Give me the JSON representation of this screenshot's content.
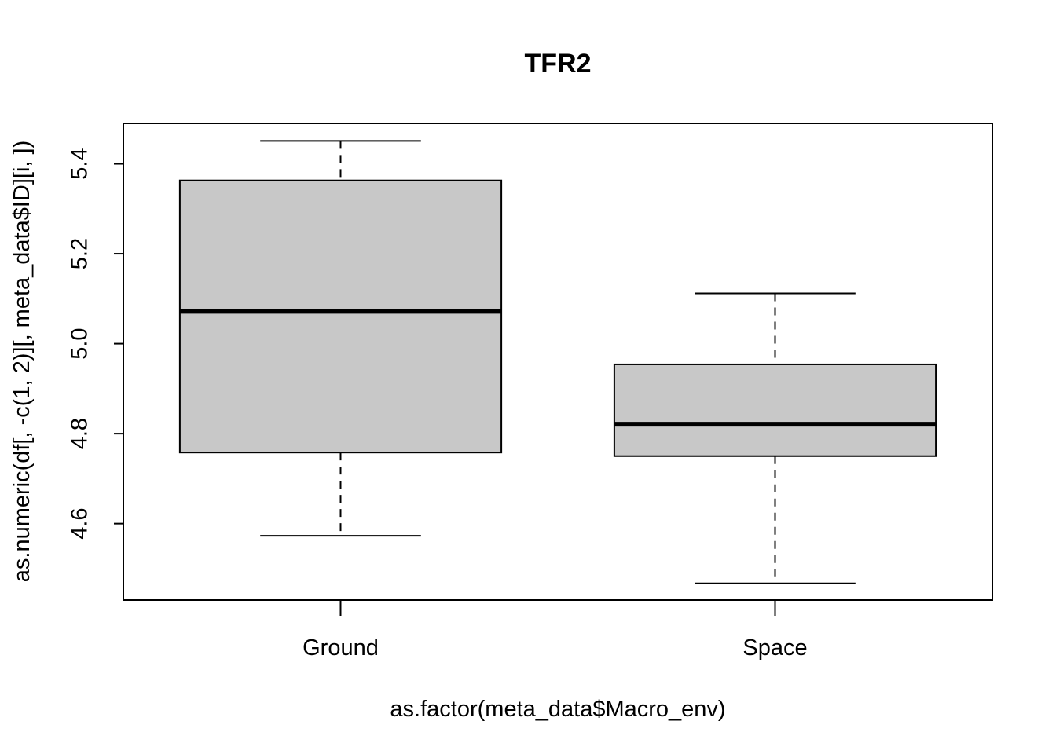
{
  "chart_data": {
    "type": "boxplot",
    "title": "TFR2",
    "xlabel": "as.factor(meta_data$Macro_env)",
    "ylabel": "as.numeric(df[, -c(1, 2)][, meta_data$ID][i, ])",
    "categories": [
      "Ground",
      "Space"
    ],
    "boxes": [
      {
        "name": "Ground",
        "whisker_low": 4.573,
        "q1": 4.758,
        "median": 5.072,
        "q3": 5.363,
        "whisker_high": 5.451
      },
      {
        "name": "Space",
        "whisker_low": 4.467,
        "q1": 4.75,
        "median": 4.821,
        "q3": 4.954,
        "whisker_high": 5.112
      }
    ],
    "ylim": [
      4.43,
      5.49
    ],
    "yticks": [
      4.6,
      4.8,
      5.0,
      5.2,
      5.4
    ],
    "ytick_labels": [
      "4.6",
      "4.8",
      "5.0",
      "5.2",
      "5.4"
    ],
    "grid": false,
    "colors": {
      "box_fill": "#c8c8c8",
      "stroke": "#000000"
    }
  }
}
